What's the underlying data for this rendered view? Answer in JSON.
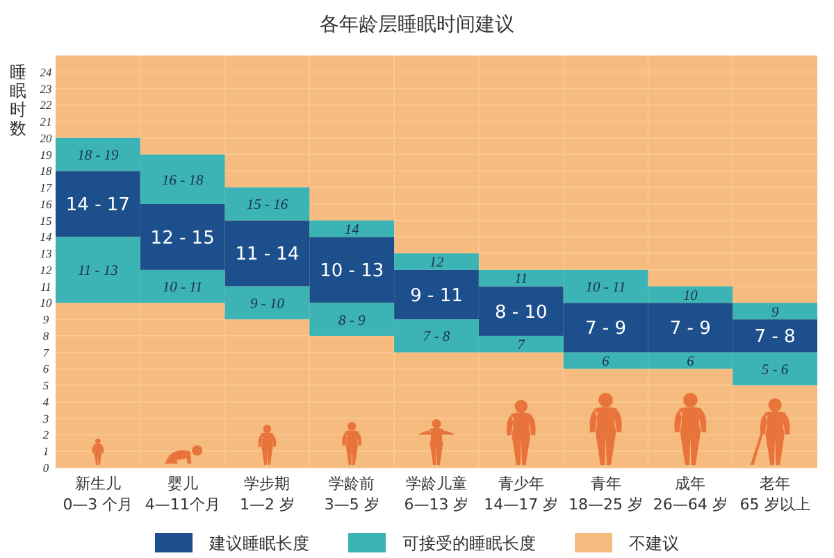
{
  "chart_data": {
    "type": "bar",
    "title": "各年龄层睡眠时间建议",
    "ylabel": "睡眠时数",
    "categories": [
      "新生儿\n0—3 个月",
      "婴儿\n4—11个月",
      "学步期\n1—2 岁",
      "学龄前\n3—5 岁",
      "学龄儿童\n6—13 岁",
      "青少年\n14—17 岁",
      "青年\n18—25 岁",
      "成年\n26—64 岁",
      "老年\n65 岁以上"
    ],
    "series": [
      {
        "name": "建议睡眠长度",
        "color": "#1c4f8c",
        "base": [
          14,
          12,
          11,
          10,
          9,
          8,
          7,
          7,
          7
        ],
        "values": [
          4,
          4,
          4,
          4,
          3,
          3,
          3,
          3,
          2
        ]
      },
      {
        "name": "可接受的睡眠长度",
        "color": "#3cb4b6",
        "base": [
          10,
          10,
          9,
          8,
          7,
          7,
          6,
          6,
          5
        ],
        "values": [
          4,
          2,
          2,
          2,
          2,
          1,
          1,
          1,
          2
        ]
      },
      {
        "color": "#3cb4b6",
        "base": [
          18,
          16,
          15,
          14,
          12,
          11,
          10,
          10,
          9
        ],
        "values": [
          2,
          3,
          2,
          1,
          1,
          1,
          2,
          1,
          1
        ]
      }
    ],
    "annotations": [
      {
        "text": "14 - 17",
        "x": "新生儿\n0—3 个月",
        "y": 18
      },
      {
        "text": "12 - 15",
        "x": "婴儿\n4—11个月",
        "y": 16
      },
      {
        "text": "11 - 14",
        "x": "学步期\n1—2 岁",
        "y": 15
      },
      {
        "text": "10 - 13",
        "x": "学龄前\n3—5 岁",
        "y": 14
      },
      {
        "text": "9 - 11",
        "x": "学龄儿童\n6—13 岁",
        "y": 12
      },
      {
        "text": "8 - 10",
        "x": "青少年\n14—17 岁",
        "y": 11
      },
      {
        "text": "7 - 9",
        "x": "青年\n18—25 岁",
        "y": 10
      },
      {
        "text": "7 - 9",
        "x": "成年\n26—64 岁",
        "y": 10
      },
      {
        "text": "7 - 8",
        "x": "老年\n65 岁以上",
        "y": 9
      },
      {
        "text": "11 - 13",
        "x": "新生儿\n0—3 个月",
        "y": 14
      },
      {
        "text": "10 - 11",
        "x": "婴儿\n4—11个月",
        "y": 12
      },
      {
        "text": "9 - 10",
        "x": "学步期\n1—2 岁",
        "y": 11
      },
      {
        "text": "8 - 9",
        "x": "学龄前\n3—5 岁",
        "y": 10
      },
      {
        "text": "7 - 8",
        "x": "学龄儿童\n6—13 岁",
        "y": 9
      },
      {
        "text": "7",
        "x": "青少年\n14—17 岁",
        "y": 8
      },
      {
        "text": "6",
        "x": "青年\n18—25 岁",
        "y": 7
      },
      {
        "text": "6",
        "x": "成年\n26—64 岁",
        "y": 7
      },
      {
        "text": "5 - 6",
        "x": "老年\n65 岁以上",
        "y": 7
      },
      {
        "text": "18 - 19",
        "x": "新生儿\n0—3 个月",
        "y": 20
      },
      {
        "text": "16 - 18",
        "x": "婴儿\n4—11个月",
        "y": 19
      },
      {
        "text": "15 - 16",
        "x": "学步期\n1—2 岁",
        "y": 17
      },
      {
        "text": "14",
        "x": "学龄前\n3—5 岁",
        "y": 15
      },
      {
        "text": "12",
        "x": "学龄儿童\n6—13 岁",
        "y": 13
      },
      {
        "text": "11",
        "x": "青少年\n14—17 岁",
        "y": 12
      },
      {
        "text": "10 - 11",
        "x": "青年\n18—25 岁",
        "y": 12
      },
      {
        "text": "10",
        "x": "成年\n26—64 岁",
        "y": 11
      },
      {
        "text": "9",
        "x": "老年\n65 岁以上",
        "y": 10
      }
    ],
    "bands": [
      {
        "axis": "y",
        "from": 0,
        "to": 25,
        "label": "不建议",
        "color": "#f6bb7e"
      }
    ],
    "ylim": [
      0,
      25
    ],
    "yticks": [
      0,
      1,
      2,
      3,
      4,
      5,
      6,
      7,
      8,
      9,
      10,
      11,
      12,
      13,
      14,
      15,
      16,
      17,
      18,
      19,
      20,
      21,
      22,
      23,
      24
    ],
    "grid": true,
    "legend": "bottom"
  }
}
